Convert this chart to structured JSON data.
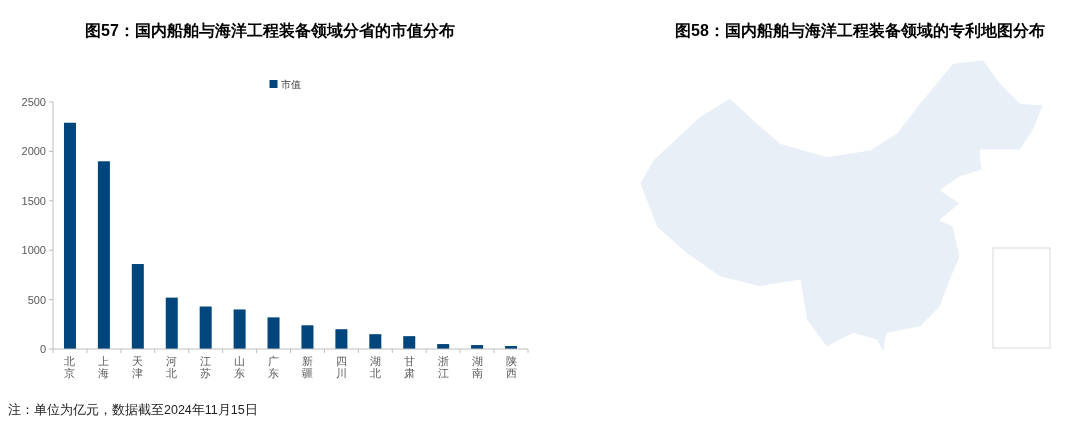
{
  "chart_data": [
    {
      "type": "bar",
      "title": "图57：国内船舶与海洋工程装备领域分省的市值分布",
      "categories": [
        "北京",
        "上海",
        "天津",
        "河北",
        "江苏",
        "山东",
        "广东",
        "新疆",
        "四川",
        "湖北",
        "甘肃",
        "浙江",
        "湖南",
        "陕西"
      ],
      "series": [
        {
          "name": "市值",
          "color": "#00457c",
          "values": [
            2290,
            1900,
            860,
            520,
            430,
            400,
            320,
            240,
            200,
            150,
            130,
            50,
            40,
            30
          ]
        }
      ],
      "ylim": [
        0,
        2500
      ],
      "yticks": [
        0,
        500,
        1000,
        1500,
        2000,
        2500
      ],
      "legend": "top",
      "annotations": [
        "注：单位为亿元，数据截至2024年11月15日"
      ]
    },
    {
      "type": "other",
      "title": "图58：国内船舶与海洋工程装备领域的专利地图分布"
    }
  ]
}
